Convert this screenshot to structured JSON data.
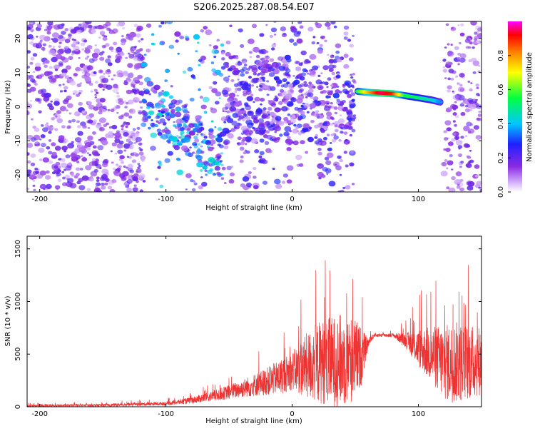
{
  "title": "S206.2025.287.08.54.E07",
  "chart_data": [
    {
      "type": "heatmap",
      "xlabel": "Height of straight line (km)",
      "ylabel": "Frequency (Hz)",
      "xlim": [
        -210,
        150
      ],
      "ylim": [
        -25,
        25
      ],
      "xticks": [
        -200,
        -100,
        0,
        100
      ],
      "yticks": [
        -20,
        -10,
        0,
        10,
        20
      ],
      "colorbar": {
        "label": "Normalized spectral amplitude",
        "ticks": [
          "0.0",
          "0.2",
          "0.4",
          "0.6",
          "0.8"
        ],
        "tick_values": [
          0.0,
          0.2,
          0.4,
          0.6,
          0.8
        ],
        "range": [
          0,
          1
        ]
      },
      "signal_track": {
        "x": [
          52,
          60,
          70,
          80,
          90,
          100,
          110,
          118
        ],
        "y": [
          4.5,
          4.2,
          4.0,
          3.8,
          3.2,
          2.6,
          2.0,
          1.3
        ],
        "amplitude": [
          0.55,
          0.75,
          0.95,
          0.9,
          0.55,
          0.5,
          0.45,
          0.35
        ]
      },
      "noise_regions": [
        {
          "x": [
            -210,
            -118
          ],
          "density": 0.9,
          "level": 0.15
        },
        {
          "x": [
            -118,
            -55
          ],
          "density": 0.6,
          "level": 0.3
        },
        {
          "x": [
            -55,
            50
          ],
          "density": 0.8,
          "level": 0.2
        },
        {
          "x": [
            120,
            150
          ],
          "density": 0.7,
          "level": 0.15
        }
      ]
    },
    {
      "type": "line",
      "xlabel": "Height of straight line (km)",
      "ylabel": "SNR (10 * v/v)",
      "xlim": [
        -210,
        150
      ],
      "ylim": [
        0,
        1620
      ],
      "xticks": [
        -200,
        -100,
        0,
        100
      ],
      "yticks": [
        0,
        500,
        1000,
        1500
      ],
      "color": "#ee3333",
      "envelope": {
        "x": [
          -210,
          -150,
          -100,
          -80,
          -60,
          -40,
          -20,
          -10,
          0,
          10,
          20,
          30,
          40,
          50,
          55,
          60,
          65,
          80,
          90,
          100,
          110,
          120,
          130,
          140,
          150
        ],
        "mean": [
          10,
          15,
          30,
          60,
          110,
          170,
          240,
          280,
          340,
          380,
          420,
          430,
          440,
          450,
          480,
          600,
          680,
          680,
          630,
          560,
          500,
          420,
          420,
          420,
          440
        ],
        "spread": [
          15,
          20,
          30,
          50,
          90,
          140,
          220,
          280,
          300,
          500,
          650,
          700,
          750,
          650,
          450,
          80,
          30,
          30,
          120,
          300,
          450,
          600,
          650,
          600,
          550
        ]
      }
    }
  ]
}
